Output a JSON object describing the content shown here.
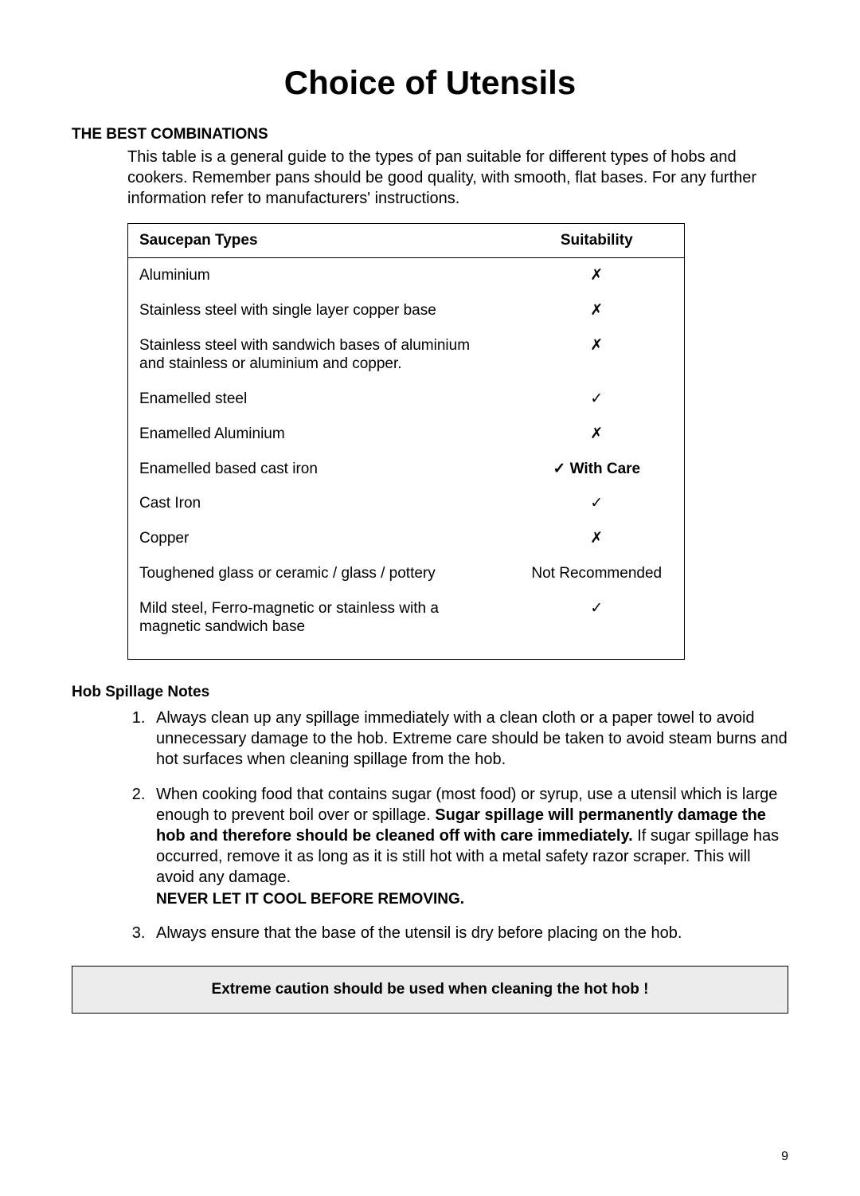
{
  "page": {
    "title": "Choice of Utensils",
    "page_number": "9"
  },
  "combinations": {
    "heading": "THE BEST COMBINATIONS",
    "intro": "This table is a general guide to the types of pan suitable for different types of hobs and cookers. Remember pans should be good quality, with smooth, flat bases. For any further information refer to manufacturers' instructions."
  },
  "table": {
    "col_type": "Saucepan Types",
    "col_suit": "Suitability",
    "rows": [
      {
        "type": "Aluminium",
        "suit": "✗",
        "suit_bold": false
      },
      {
        "type": "Stainless steel with single layer copper base",
        "suit": "✗",
        "suit_bold": false
      },
      {
        "type": "Stainless steel with sandwich bases of aluminium and stainless or aluminium and copper.",
        "suit": "✗",
        "suit_bold": false
      },
      {
        "type": "Enamelled steel",
        "suit": "✓",
        "suit_bold": false
      },
      {
        "type": "Enamelled Aluminium",
        "suit": "✗",
        "suit_bold": false
      },
      {
        "type": "Enamelled based cast iron",
        "suit": "✓ With Care",
        "suit_bold": true
      },
      {
        "type": "Cast Iron",
        "suit": "✓",
        "suit_bold": false
      },
      {
        "type": "Copper",
        "suit": "✗",
        "suit_bold": false
      },
      {
        "type": "Toughened glass or ceramic / glass / pottery",
        "suit": "Not Recommended",
        "suit_bold": false
      },
      {
        "type": "Mild steel, Ferro-magnetic or stainless with a magnetic sandwich base",
        "suit": "✓",
        "suit_bold": false
      }
    ]
  },
  "spillage": {
    "heading": "Hob Spillage Notes",
    "note1": "Always clean up any spillage immediately with a clean cloth or a paper towel to avoid unnecessary damage to the hob. Extreme care should be taken to avoid steam burns and hot surfaces when cleaning spillage from the hob.",
    "note2_pre": "When cooking food that contains sugar (most food) or syrup, use a utensil which is large enough to prevent boil over or spillage. ",
    "note2_bold": "Sugar spillage will permanently damage the hob and therefore should be cleaned off with care immediately.",
    "note2_post": " If sugar spillage has occurred, remove it as long as it is still hot with a metal safety razor scraper. This will avoid any damage.",
    "never": "NEVER LET IT COOL BEFORE REMOVING.",
    "note3": "Always ensure that the base of the utensil is dry before placing on the hob."
  },
  "caution": {
    "text": "Extreme caution should be used when cleaning the hot hob !"
  }
}
